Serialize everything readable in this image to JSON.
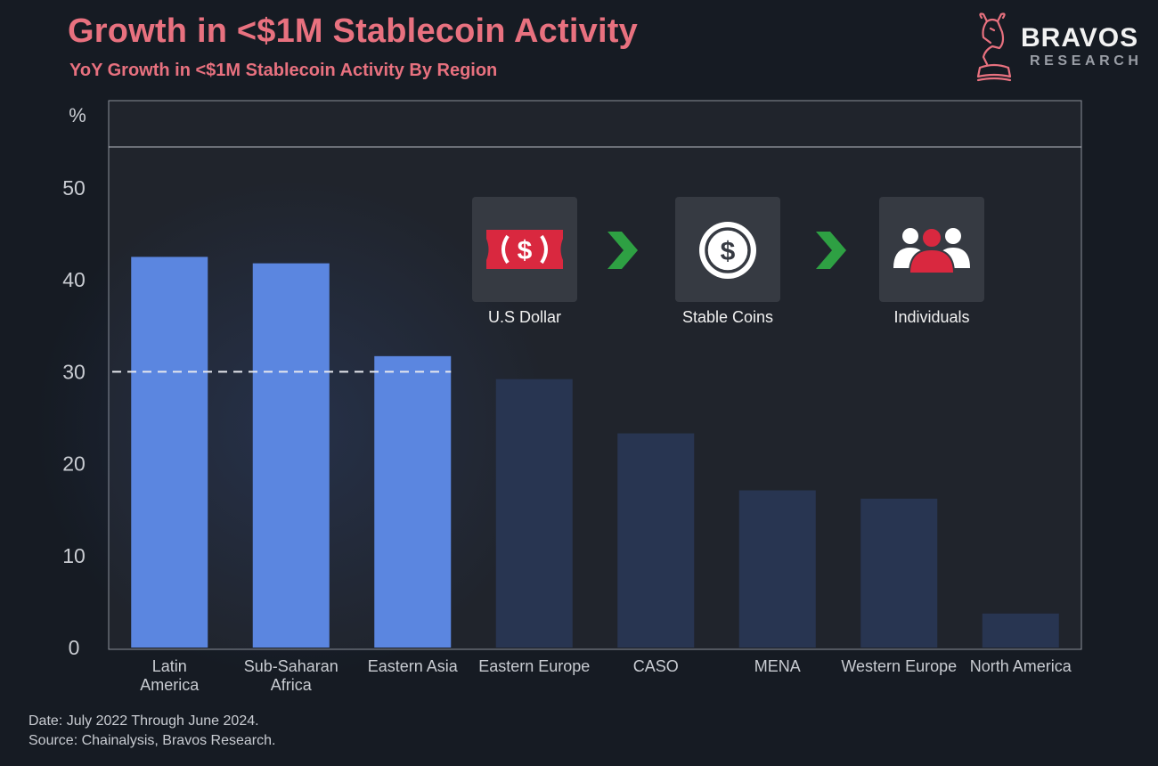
{
  "header": {
    "title": "Growth in <$1M Stablecoin Activity",
    "subtitle": "YoY Growth in <$1M Stablecoin Activity By Region"
  },
  "logo": {
    "name": "BRAVOS",
    "sub": "RESEARCH"
  },
  "flow": {
    "items": [
      {
        "label": "U.S Dollar",
        "icon": "dollar-bill-icon"
      },
      {
        "label": "Stable Coins",
        "icon": "stablecoin-icon"
      },
      {
        "label": "Individuals",
        "icon": "people-icon"
      }
    ],
    "arrow_icon": "chevron-right-icon",
    "arrow_color": "#2ea043"
  },
  "chart_data": {
    "type": "bar",
    "title": "YoY Growth in <$1M Stablecoin Activity By Region",
    "ylabel": "%",
    "xlabel": "",
    "ylim": [
      0,
      55
    ],
    "yticks": [
      0,
      10,
      20,
      30,
      40,
      50
    ],
    "categories": [
      "Latin America",
      "Sub-Saharan Africa",
      "Eastern Asia",
      "Eastern Europe",
      "CASO",
      "MENA",
      "Western Europe",
      "North America"
    ],
    "category_lines": [
      [
        "Latin",
        "America"
      ],
      [
        "Sub-Saharan",
        "Africa"
      ],
      [
        "Eastern Asia"
      ],
      [
        "Eastern Europe"
      ],
      [
        "CASO"
      ],
      [
        "MENA"
      ],
      [
        "Western Europe"
      ],
      [
        "North America"
      ]
    ],
    "values": [
      42.5,
      41.8,
      31.7,
      29.2,
      23.3,
      17.1,
      16.2,
      3.7
    ],
    "highlighted": [
      true,
      true,
      true,
      false,
      false,
      false,
      false,
      false
    ],
    "reference_line": 30,
    "colors": {
      "highlight": "#5b86e0",
      "muted": "#283551",
      "reference": "#e6e8ee"
    }
  },
  "footer": {
    "date": "Date: July 2022 Through June 2024.",
    "source": "Source: Chainalysis, Bravos Research."
  }
}
